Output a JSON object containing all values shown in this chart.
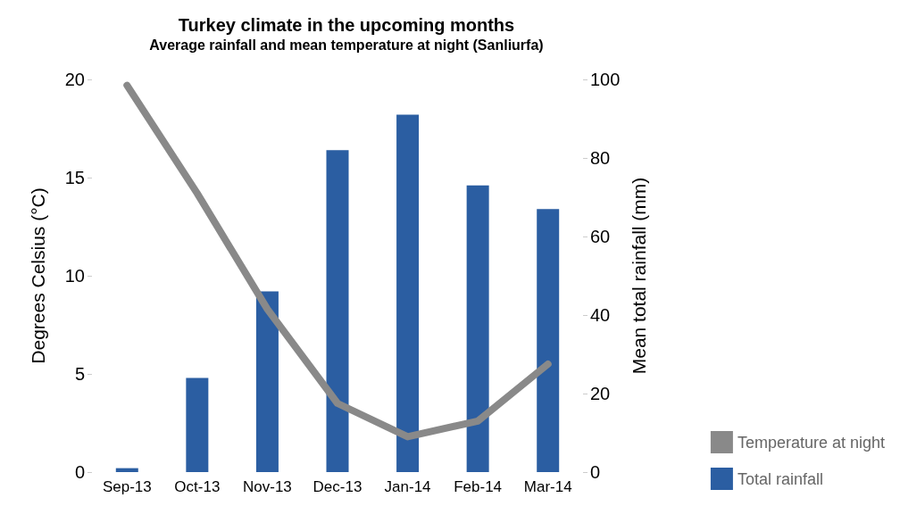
{
  "chart_data": {
    "type": "bar",
    "title": "Turkey climate in the upcoming months",
    "subtitle": "Average rainfall and mean temperature at night (Sanliurfa)",
    "ylabel": "Degrees Celsius (°C)",
    "y2label": "Mean total rainfall (mm)",
    "categories": [
      "Sep-13",
      "Oct-13",
      "Nov-13",
      "Dec-13",
      "Jan-14",
      "Feb-14",
      "Mar-14"
    ],
    "series": [
      {
        "name": "Temperature at night",
        "type": "line",
        "color": "#898989",
        "values": [
          19.7,
          14.2,
          8.3,
          3.5,
          1.8,
          2.6,
          5.5
        ]
      },
      {
        "name": "Total rainfall",
        "axis": "y2",
        "color": "#2b5ea2",
        "values": [
          1,
          24,
          46,
          82,
          91,
          73,
          67
        ]
      }
    ],
    "ylim": [
      0,
      20
    ],
    "yticks": [
      0,
      5,
      10,
      15,
      20
    ],
    "y2lim": [
      0,
      100
    ],
    "y2ticks": [
      0,
      20,
      40,
      60,
      80,
      100
    ],
    "grid": false,
    "legend": "bottom right",
    "line_style": "solid"
  }
}
